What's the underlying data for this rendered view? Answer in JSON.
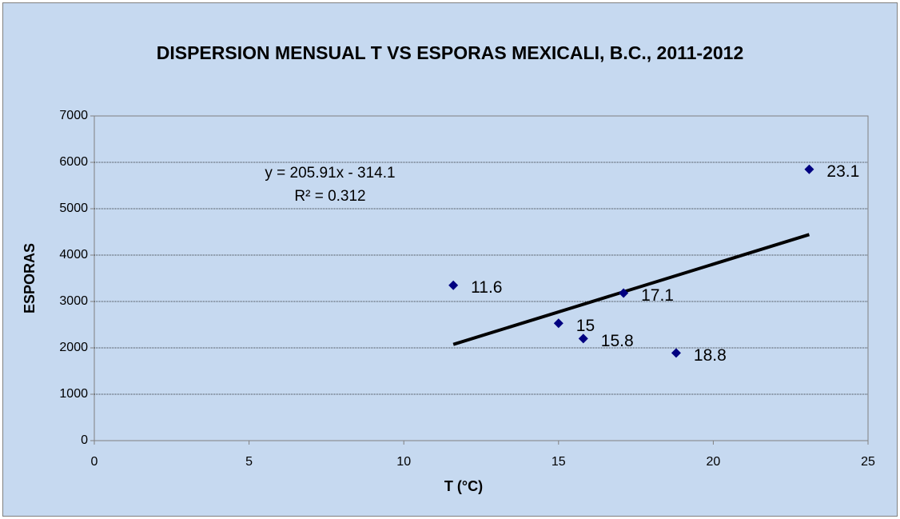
{
  "chart_data": {
    "type": "scatter",
    "title": "DISPERSION MENSUAL T VS ESPORAS MEXICALI, B.C., 2011-2012",
    "xlabel": "T (°C)",
    "ylabel": "ESPORAS",
    "x": [
      11.6,
      15,
      15.8,
      17.1,
      18.8,
      23.1
    ],
    "values": [
      3350,
      2530,
      2200,
      3180,
      1890,
      5850
    ],
    "color": "#000080",
    "trendline": {
      "x": [
        11.6,
        23.1
      ],
      "y": [
        2074,
        4443
      ],
      "color": "#000000"
    },
    "annotations": [
      "y = 205.91x - 314.1",
      "R² = 0.312"
    ],
    "xlim": [
      0,
      25
    ],
    "xticks": [
      0,
      5,
      10,
      15,
      20,
      25
    ],
    "ylim": [
      0,
      7000
    ],
    "yticks": [
      0,
      1000,
      2000,
      3000,
      4000,
      5000,
      6000,
      7000
    ],
    "grid": true
  }
}
